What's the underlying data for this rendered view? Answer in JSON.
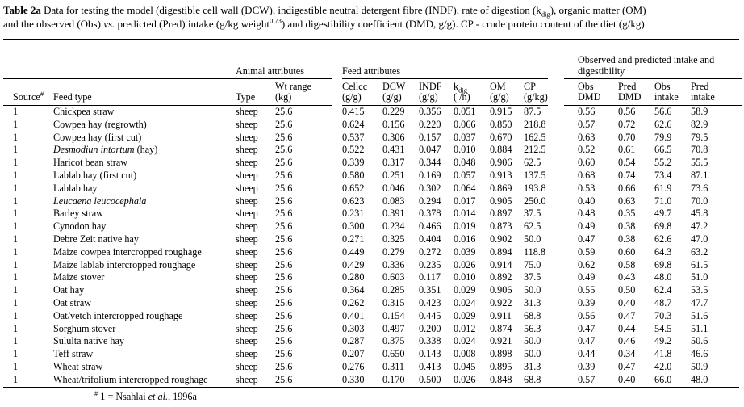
{
  "colors": {
    "text": "#000000",
    "background": "#ffffff",
    "rule": "#000000"
  },
  "title": {
    "bold": "Table 2a",
    "line1_a": " Data for testing the model (digestible cell wall (DCW), indigestible neutral detergent fibre (INDF), rate of digestion (k",
    "line1_sub": "dig",
    "line1_b": "), organic matter (OM)",
    "line2_a": "and the observed (Obs) ",
    "line2_italic": "vs.",
    "line2_b": " predicted (Pred) intake (g/kg weight",
    "line2_sup": "0.73",
    "line2_c": ") and digestibility coefficient (DMD, g/g). CP - crude protein content of the diet (g/kg)"
  },
  "table": {
    "group_headers": {
      "animal": "Animal attributes",
      "feed": "Feed attributes",
      "observed": "Observed and predicted  intake and digestibility"
    },
    "headers": {
      "source": {
        "text": "Source",
        "sup": "#"
      },
      "feed_type": "Feed type",
      "type": "Type",
      "wt": {
        "line1": "Wt range",
        "line2": "(kg)"
      },
      "cellcc": {
        "line1": "Cellcc",
        "line2": "(g/g)"
      },
      "dcw": {
        "line1": "DCW",
        "line2": "(g/g)"
      },
      "indf": {
        "line1": "INDF",
        "line2": "(g/g)"
      },
      "kdig": {
        "base": "k",
        "sub": "dig",
        "line2": "( /h)"
      },
      "om": {
        "line1": "OM",
        "line2": "(g/g)"
      },
      "cp": {
        "line1": "CP",
        "line2": "(g/kg)"
      },
      "obs_dmd": {
        "line1": "Obs",
        "line2": "DMD"
      },
      "pred_dmd": {
        "line1": "Pred",
        "line2": "DMD"
      },
      "obs_intake": {
        "line1": "Obs",
        "line2": "intake"
      },
      "pred_intake": {
        "line1": "Pred",
        "line2": "intake"
      }
    },
    "rows": [
      {
        "source": "1",
        "feed_italic": "",
        "feed": "Chickpea straw",
        "type": "sheep",
        "wt": "25.6",
        "values": [
          "0.415",
          "0.229",
          "0.356",
          "0.051",
          "0.915",
          "87.5",
          "0.56",
          "0.56",
          "56.6",
          "58.9"
        ]
      },
      {
        "source": "1",
        "feed_italic": "",
        "feed": "Cowpea hay (regrowth)",
        "type": "sheep",
        "wt": "25.6",
        "values": [
          "0.624",
          "0.156",
          "0.220",
          "0.066",
          "0.850",
          "218.8",
          "0.57",
          "0.72",
          "62.6",
          "82.9"
        ]
      },
      {
        "source": "1",
        "feed_italic": "",
        "feed": "Cowpea hay (first cut)",
        "type": "sheep",
        "wt": "25.6",
        "values": [
          "0.537",
          "0.306",
          "0.157",
          "0.037",
          "0.670",
          "162.5",
          "0.63",
          "0.70",
          "79.9",
          "79.5"
        ]
      },
      {
        "source": "1",
        "feed_italic": "Desmodiun intortum",
        "feed": " (hay)",
        "type": "sheep",
        "wt": "25.6",
        "values": [
          "0.522",
          "0.431",
          "0.047",
          "0.010",
          "0.884",
          "212.5",
          "0.52",
          "0.61",
          "66.5",
          "70.8"
        ]
      },
      {
        "source": "1",
        "feed_italic": "",
        "feed": "Haricot bean straw",
        "type": "sheep",
        "wt": "25.6",
        "values": [
          "0.339",
          "0.317",
          "0.344",
          "0.048",
          "0.906",
          "62.5",
          "0.60",
          "0.54",
          "55.2",
          "55.5"
        ]
      },
      {
        "source": "1",
        "feed_italic": "",
        "feed": "Lablab hay (first cut)",
        "type": "sheep",
        "wt": "25.6",
        "values": [
          "0.580",
          "0.251",
          "0.169",
          "0.057",
          "0.913",
          "137.5",
          "0.68",
          "0.74",
          "73.4",
          "87.1"
        ]
      },
      {
        "source": "1",
        "feed_italic": "",
        "feed": "Lablab hay",
        "type": "sheep",
        "wt": "25.6",
        "values": [
          "0.652",
          "0.046",
          "0.302",
          "0.064",
          "0.869",
          "193.8",
          "0.53",
          "0.66",
          "61.9",
          "73.6"
        ]
      },
      {
        "source": "1",
        "feed_italic": "Leucaena leucocephala",
        "feed": "",
        "type": "sheep",
        "wt": "25.6",
        "values": [
          "0.623",
          "0.083",
          "0.294",
          "0.017",
          "0.905",
          "250.0",
          "0.40",
          "0.63",
          "71.0",
          "70.0"
        ]
      },
      {
        "source": "1",
        "feed_italic": "",
        "feed": "Barley straw",
        "type": "sheep",
        "wt": "25.6",
        "values": [
          "0.231",
          "0.391",
          "0.378",
          "0.014",
          "0.897",
          "37.5",
          "0.48",
          "0.35",
          "49.7",
          "45.8"
        ]
      },
      {
        "source": "1",
        "feed_italic": "",
        "feed": "Cynodon hay",
        "type": "sheep",
        "wt": "25.6",
        "values": [
          "0.300",
          "0.234",
          "0.466",
          "0.019",
          "0.873",
          "62.5",
          "0.49",
          "0.38",
          "69.8",
          "47.2"
        ]
      },
      {
        "source": "1",
        "feed_italic": "",
        "feed": "Debre Zeit native hay",
        "type": "sheep",
        "wt": "25.6",
        "values": [
          "0.271",
          "0.325",
          "0.404",
          "0.016",
          "0.902",
          "50.0",
          "0.47",
          "0.38",
          "62.6",
          "47.0"
        ]
      },
      {
        "source": "1",
        "feed_italic": "",
        "feed": "Maize cowpea intercropped roughage",
        "type": "sheep",
        "wt": "25.6",
        "values": [
          "0.449",
          "0.279",
          "0.272",
          "0.039",
          "0.894",
          "118.8",
          "0.59",
          "0.60",
          "64.3",
          "63.2"
        ]
      },
      {
        "source": "1",
        "feed_italic": "",
        "feed": "Maize lablab intercropped roughage",
        "type": "sheep",
        "wt": "25.6",
        "values": [
          "0.429",
          "0.336",
          "0.235",
          "0.026",
          "0.914",
          "75.0",
          "0.62",
          "0.58",
          "69.8",
          "61.5"
        ]
      },
      {
        "source": "1",
        "feed_italic": "",
        "feed": "Maize stover",
        "type": "sheep",
        "wt": "25.6",
        "values": [
          "0.280",
          "0.603",
          "0.117",
          "0.010",
          "0.892",
          "37.5",
          "0.49",
          "0.43",
          "48.0",
          "51.0"
        ]
      },
      {
        "source": "1",
        "feed_italic": "",
        "feed": "Oat hay",
        "type": "sheep",
        "wt": "25.6",
        "values": [
          "0.364",
          "0.285",
          "0.351",
          "0.029",
          "0.906",
          "50.0",
          "0.55",
          "0.50",
          "62.4",
          "53.5"
        ]
      },
      {
        "source": "1",
        "feed_italic": "",
        "feed": "Oat straw",
        "type": "sheep",
        "wt": "25.6",
        "values": [
          "0.262",
          "0.315",
          "0.423",
          "0.024",
          "0.922",
          "31.3",
          "0.39",
          "0.40",
          "48.7",
          "47.7"
        ]
      },
      {
        "source": "1",
        "feed_italic": "",
        "feed": "Oat/vetch intercropped roughage",
        "type": "sheep",
        "wt": "25.6",
        "values": [
          "0.401",
          "0.154",
          "0.445",
          "0.029",
          "0.911",
          "68.8",
          "0.56",
          "0.47",
          "70.3",
          "51.6"
        ]
      },
      {
        "source": "1",
        "feed_italic": "",
        "feed": "Sorghum stover",
        "type": "sheep",
        "wt": "25.6",
        "values": [
          "0.303",
          "0.497",
          "0.200",
          "0.012",
          "0.874",
          "56.3",
          "0.47",
          "0.44",
          "54.5",
          "51.1"
        ]
      },
      {
        "source": "1",
        "feed_italic": "",
        "feed": "Sululta native hay",
        "type": "sheep",
        "wt": "25.6",
        "values": [
          "0.287",
          "0.375",
          "0.338",
          "0.024",
          "0.921",
          "50.0",
          "0.47",
          "0.46",
          "49.2",
          "50.6"
        ]
      },
      {
        "source": "1",
        "feed_italic": "",
        "feed": "Teff straw",
        "type": "sheep",
        "wt": "25.6",
        "values": [
          "0.207",
          "0.650",
          "0.143",
          "0.008",
          "0.898",
          "50.0",
          "0.44",
          "0.34",
          "41.8",
          "46.6"
        ]
      },
      {
        "source": "1",
        "feed_italic": "",
        "feed": "Wheat straw",
        "type": "sheep",
        "wt": "25.6",
        "values": [
          "0.276",
          "0.311",
          "0.413",
          "0.045",
          "0.895",
          "31.3",
          "0.39",
          "0.47",
          "42.0",
          "50.9"
        ]
      },
      {
        "source": "1",
        "feed_italic": "",
        "feed": "Wheat/trifolium intercropped roughage",
        "type": "sheep",
        "wt": "25.6",
        "values": [
          "0.330",
          "0.170",
          "0.500",
          "0.026",
          "0.848",
          "68.8",
          "0.57",
          "0.40",
          "66.0",
          "48.0"
        ]
      }
    ]
  },
  "footnote": {
    "sup": "#",
    "pre": " 1 = Nsahlai ",
    "italic": "et al.",
    "post": ", 1996a"
  }
}
